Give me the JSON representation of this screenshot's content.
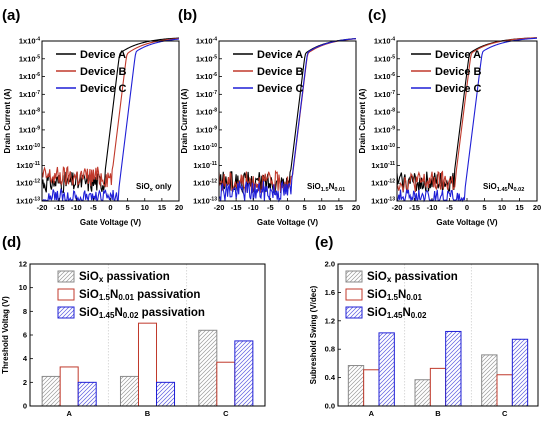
{
  "colors": {
    "device_a": "#000000",
    "device_b": "#c0392b",
    "device_c": "#1f1fd6",
    "pattern_gray": "#8a8a8a",
    "pattern_red": "#c0392b",
    "pattern_blue": "#1f1fd6"
  },
  "panels_top": [
    {
      "letter": "(a)",
      "condition_main": "SiO",
      "condition_sub": "x",
      "condition_tail": " only",
      "curves": {
        "device_a": {
          "on": -2.0,
          "ioff": 1e-12
        },
        "device_b": {
          "on": 0.3,
          "ioff": 2e-12
        },
        "device_c": {
          "on": 2.0,
          "ioff": 1e-13
        }
      }
    },
    {
      "letter": "(b)",
      "condition_main": "SiO",
      "condition_sub": "1.5",
      "condition_tail": "N",
      "condition_sub2": "0.01",
      "curves": {
        "device_a": {
          "on": 0.5,
          "ioff": 1e-12
        },
        "device_b": {
          "on": 1.2,
          "ioff": 1e-12
        },
        "device_c": {
          "on": 0.8,
          "ioff": 3e-13
        }
      }
    },
    {
      "letter": "(c)",
      "condition_main": "SiO",
      "condition_sub": "1.45",
      "condition_tail": "N",
      "condition_sub2": "0.02",
      "curves": {
        "device_a": {
          "on": -4.0,
          "ioff": 1e-12
        },
        "device_b": {
          "on": -3.5,
          "ioff": 1e-12
        },
        "device_c": {
          "on": -1.0,
          "ioff": 1e-13
        }
      }
    }
  ],
  "panel_bottom_left": {
    "letter": "(d)"
  },
  "panel_bottom_right": {
    "letter": "(e)"
  },
  "chart_data": [
    {
      "type": "line",
      "panel": "(a)",
      "xlabel": "Gate Voltage (V)",
      "ylabel": "Drain Current (A)",
      "xlim": [
        -20,
        20
      ],
      "ylim_log": [
        1e-13,
        0.0001
      ],
      "scale_y": "log",
      "xticks": [
        "-20",
        "-15",
        "-10",
        "-5",
        "0",
        "5",
        "10",
        "15",
        "20"
      ],
      "yticks": [
        "1x10",
        "1x10",
        "1x10",
        "1x10",
        "1x10",
        "1x10",
        "1x10",
        "1x10",
        "1x10",
        "1x10"
      ],
      "yticks_exp": [
        "-4",
        "-5",
        "-6",
        "-7",
        "-8",
        "-9",
        "-10",
        "-11",
        "-12",
        "-13"
      ],
      "legend": [
        "Device A",
        "Device B",
        "Device C"
      ]
    },
    {
      "type": "line",
      "panel": "(b)",
      "xlabel": "Gate Voltage (V)",
      "ylabel": "Drain Current (A)",
      "xlim": [
        -20,
        20
      ],
      "ylim_log": [
        1e-13,
        0.0001
      ],
      "scale_y": "log",
      "xticks": [
        "-20",
        "-15",
        "-10",
        "-5",
        "0",
        "5",
        "10",
        "15",
        "20"
      ],
      "yticks": [
        "1x10",
        "1x10",
        "1x10",
        "1x10",
        "1x10",
        "1x10",
        "1x10",
        "1x10",
        "1x10",
        "1x10"
      ],
      "yticks_exp": [
        "-4",
        "-5",
        "-6",
        "-7",
        "-8",
        "-9",
        "-10",
        "-11",
        "-12",
        "-13"
      ],
      "legend": [
        "Device A",
        "Device B",
        "Device C"
      ]
    },
    {
      "type": "line",
      "panel": "(c)",
      "xlabel": "Gate Voltage (V)",
      "ylabel": "Drain Current (A)",
      "xlim": [
        -20,
        20
      ],
      "ylim_log": [
        1e-13,
        0.0001
      ],
      "scale_y": "log",
      "xticks": [
        "-20",
        "-15",
        "-10",
        "-5",
        "0",
        "5",
        "10",
        "15",
        "20"
      ],
      "yticks": [
        "1x10",
        "1x10",
        "1x10",
        "1x10",
        "1x10",
        "1x10",
        "1x10",
        "1x10",
        "1x10",
        "1x10"
      ],
      "yticks_exp": [
        "-4",
        "-5",
        "-6",
        "-7",
        "-8",
        "-9",
        "-10",
        "-11",
        "-12",
        "-13"
      ],
      "legend": [
        "Device A",
        "Device B",
        "Device C"
      ]
    },
    {
      "type": "bar",
      "panel": "(d)",
      "ylabel": "Threshold Voltag (V)",
      "ylim": [
        0,
        12
      ],
      "yticks": [
        "0",
        "2",
        "4",
        "6",
        "8",
        "10",
        "12"
      ],
      "categories": [
        "A",
        "B",
        "C"
      ],
      "series": [
        {
          "name": "SiO",
          "name_sub": "x",
          "name_tail": " passivation",
          "values": [
            2.5,
            2.5,
            6.4
          ]
        },
        {
          "name": "SiO",
          "name_sub": "1.5",
          "name_tail": "N",
          "name_sub2": "0.01",
          "name_tail2": " passivation",
          "values": [
            3.3,
            7.0,
            3.7
          ]
        },
        {
          "name": "SiO",
          "name_sub": "1.45",
          "name_tail": "N",
          "name_sub2": "0.02",
          "name_tail2": " passivation",
          "values": [
            2.0,
            2.0,
            5.5
          ]
        }
      ]
    },
    {
      "type": "bar",
      "panel": "(e)",
      "ylabel": "Subreshold Swing (V/dec)",
      "ylim": [
        0,
        2.0
      ],
      "yticks": [
        "0.0",
        "0.4",
        "0.8",
        "1.2",
        "1.6",
        "2.0"
      ],
      "categories": [
        "A",
        "B",
        "C"
      ],
      "series": [
        {
          "name": "SiO",
          "name_sub": "x",
          "name_tail": " passivation",
          "values": [
            0.57,
            0.37,
            0.72
          ]
        },
        {
          "name": "SiO",
          "name_sub": "1.5",
          "name_tail": "N",
          "name_sub2": "0.01",
          "name_tail2": "",
          "values": [
            0.51,
            0.53,
            0.44
          ]
        },
        {
          "name": "SiO",
          "name_sub": "1.45",
          "name_tail": "N",
          "name_sub2": "0.02",
          "name_tail2": "",
          "values": [
            1.03,
            1.05,
            0.94
          ]
        }
      ]
    }
  ]
}
